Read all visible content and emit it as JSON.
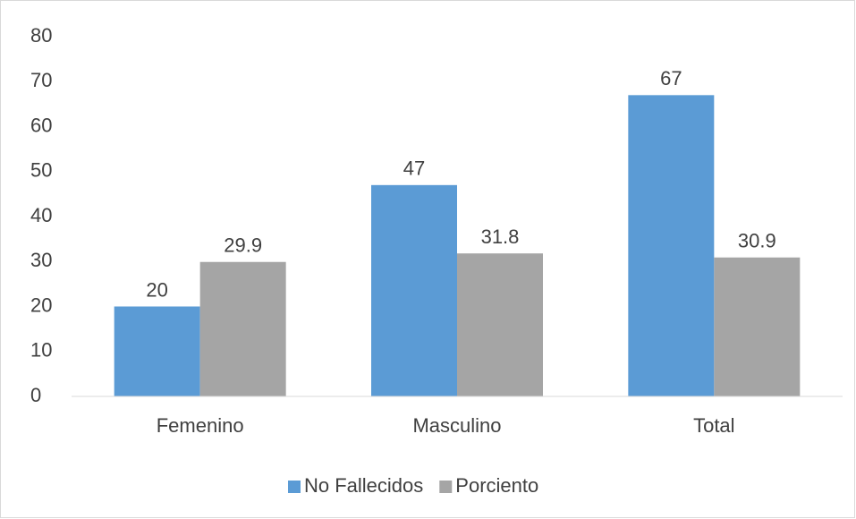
{
  "chart_data": {
    "type": "bar",
    "categories": [
      "Femenino",
      "Masculino",
      "Total"
    ],
    "series": [
      {
        "name": "No Fallecidos",
        "color": "#5b9bd5",
        "values": [
          20,
          47,
          67
        ]
      },
      {
        "name": "Porciento",
        "color": "#a5a5a5",
        "values": [
          29.9,
          31.8,
          30.9
        ]
      }
    ],
    "ylim": [
      0,
      80
    ],
    "yticks": [
      0,
      10,
      20,
      30,
      40,
      50,
      60,
      70,
      80
    ],
    "grid": false,
    "legend": "bottom"
  }
}
